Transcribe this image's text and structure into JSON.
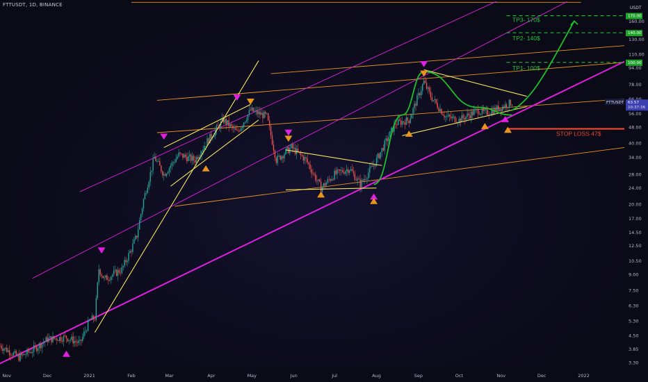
{
  "header": {
    "title": "FTTUSDT, 1D, BINANCE"
  },
  "price_axis": {
    "unit": "USDT",
    "ticks": [
      3.3,
      3.85,
      4.5,
      5.3,
      6.3,
      7.5,
      9.0,
      10.5,
      12.5,
      14.5,
      17.0,
      20.0,
      24.0,
      28.0,
      34.0,
      40.0,
      48.0,
      56.0,
      66.0,
      78.0,
      94.0,
      110.0,
      130.0,
      160.0,
      190.0
    ]
  },
  "time_axis": {
    "labels": [
      "Nov",
      "Dec",
      "2021",
      "Feb",
      "Mar",
      "Apr",
      "May",
      "Jun",
      "Jul",
      "Aug",
      "Sep",
      "Oct",
      "Nov",
      "Dec",
      "2022"
    ]
  },
  "price_tags": {
    "last": {
      "label": "FTTUSDT",
      "price": "63.57",
      "countdown": "10:37:36",
      "color": "#3b3fb0"
    },
    "tp3": {
      "price": "170.00",
      "color": "#1fa32b"
    },
    "tp2": {
      "price": "140.00",
      "color": "#1fa32b"
    },
    "tp1": {
      "price": "100.00",
      "color": "#1fa32b"
    }
  },
  "annotations": {
    "tp3": "TP3- 170$",
    "tp2": "TP2- 140$",
    "tp1": "TP1- 100$",
    "stop_loss": "STOP LOSS 47$"
  },
  "colors": {
    "up": "#26a69a",
    "down": "#ef5350",
    "magenta": "#e01fe0",
    "orange": "#e8951e",
    "yellow": "#f5e65b",
    "green": "#1fbf2c",
    "red": "#e8482f"
  },
  "chart_data": {
    "type": "candlestick",
    "symbol": "FTTUSDT",
    "interval": "1D",
    "exchange": "BINANCE",
    "scale": "log",
    "ylim": [
      3.1,
      200
    ],
    "xlim": [
      "2020-10-27",
      "2022-01-31"
    ],
    "close_path": [
      [
        "2020-10-27",
        4.0
      ],
      [
        "2020-11-10",
        3.5
      ],
      [
        "2020-11-20",
        3.8
      ],
      [
        "2020-12-01",
        4.3
      ],
      [
        "2020-12-15",
        4.4
      ],
      [
        "2020-12-25",
        4.1
      ],
      [
        "2021-01-01",
        5.3
      ],
      [
        "2021-01-05",
        5.5
      ],
      [
        "2021-01-08",
        9.6
      ],
      [
        "2021-01-12",
        8.5
      ],
      [
        "2021-01-25",
        9.5
      ],
      [
        "2021-02-01",
        12.0
      ],
      [
        "2021-02-05",
        14.0
      ],
      [
        "2021-02-10",
        21.0
      ],
      [
        "2021-02-18",
        34.0
      ],
      [
        "2021-02-25",
        28.0
      ],
      [
        "2021-03-08",
        35.0
      ],
      [
        "2021-03-20",
        33.0
      ],
      [
        "2021-03-28",
        40.0
      ],
      [
        "2021-04-10",
        52.0
      ],
      [
        "2021-04-20",
        45.0
      ],
      [
        "2021-04-30",
        58.0
      ],
      [
        "2021-05-12",
        54.0
      ],
      [
        "2021-05-19",
        33.0
      ],
      [
        "2021-05-30",
        38.0
      ],
      [
        "2021-06-10",
        33.0
      ],
      [
        "2021-06-21",
        24.0
      ],
      [
        "2021-07-01",
        28.0
      ],
      [
        "2021-07-12",
        30.0
      ],
      [
        "2021-07-20",
        25.0
      ],
      [
        "2021-07-31",
        32.0
      ],
      [
        "2021-08-15",
        50.0
      ],
      [
        "2021-08-25",
        52.0
      ],
      [
        "2021-09-05",
        80.0
      ],
      [
        "2021-09-10",
        68.0
      ],
      [
        "2021-09-21",
        54.0
      ],
      [
        "2021-10-01",
        52.0
      ],
      [
        "2021-10-15",
        58.0
      ],
      [
        "2021-10-20",
        56.0
      ],
      [
        "2021-11-01",
        60.0
      ],
      [
        "2021-11-09",
        63.57
      ]
    ],
    "targets": [
      {
        "name": "TP3",
        "price": 170
      },
      {
        "name": "TP2",
        "price": 140
      },
      {
        "name": "TP1",
        "price": 100
      }
    ],
    "stop_loss": 47,
    "current_price": 63.57,
    "projection": [
      [
        "2021-11-09",
        58
      ],
      [
        "2021-11-25",
        66
      ],
      [
        "2021-12-08",
        100
      ],
      [
        "2021-12-25",
        160
      ]
    ],
    "markers": {
      "magenta_down": [
        [
          "2021-01-10",
          11.8
        ],
        [
          "2021-02-25",
          43
        ],
        [
          "2021-04-20",
          67
        ],
        [
          "2021-05-28",
          45
        ],
        [
          "2021-09-05",
          98
        ]
      ],
      "magenta_up": [
        [
          "2020-12-15",
          3.65
        ],
        [
          "2021-07-30",
          21.8
        ],
        [
          "2021-11-04",
          52.5
        ]
      ],
      "orange_down": [
        [
          "2021-04-30",
          64
        ],
        [
          "2021-05-28",
          42
        ],
        [
          "2021-09-05",
          88
        ]
      ],
      "orange_up": [
        [
          "2021-03-28",
          30
        ],
        [
          "2021-06-21",
          22.3
        ],
        [
          "2021-07-30",
          20.7
        ],
        [
          "2021-08-25",
          44.5
        ],
        [
          "2021-10-20",
          48.5
        ],
        [
          "2021-11-06",
          46.5
        ]
      ]
    },
    "lines": {
      "magenta_main": [
        [
          "2020-10-20",
          3.1
        ],
        [
          "2022-01-31",
          101
        ]
      ],
      "magenta_channel": [
        [
          [
            "2020-11-20",
            8.6
          ],
          [
            "2021-12-20",
            200
          ]
        ],
        [
          [
            "2020-12-25",
            23
          ],
          [
            "2021-11-01",
            205
          ]
        ]
      ],
      "orange_channel": [
        [
          [
            "2021-03-05",
            19.5
          ],
          [
            "2022-01-31",
            38
          ]
        ],
        [
          [
            "2021-02-20",
            45
          ],
          [
            "2022-01-31",
            66
          ]
        ],
        [
          [
            "2021-02-20",
            65
          ],
          [
            "2022-01-31",
            100
          ]
        ],
        [
          [
            "2021-05-15",
            88
          ],
          [
            "2022-01-31",
            121
          ]
        ],
        [
          [
            "2021-02-01",
            198
          ],
          [
            "2021-12-30",
            198
          ]
        ]
      ],
      "yellow": [
        [
          [
            "2021-01-05",
            4.65
          ],
          [
            "2021-05-06",
            102
          ]
        ],
        [
          [
            "2021-02-25",
            38
          ],
          [
            "2021-04-30",
            62
          ]
        ],
        [
          [
            "2021-03-02",
            24.5
          ],
          [
            "2021-05-06",
            52
          ]
        ],
        [
          [
            "2021-05-26",
            37
          ],
          [
            "2021-08-05",
            31
          ]
        ],
        [
          [
            "2021-05-26",
            23.5
          ],
          [
            "2021-08-01",
            24
          ]
        ],
        [
          [
            "2021-09-05",
            92
          ],
          [
            "2021-11-20",
            68
          ]
        ],
        [
          [
            "2021-08-20",
            43.5
          ],
          [
            "2021-11-20",
            60.5
          ]
        ]
      ],
      "green_curve": [
        [
          "2021-07-30",
          25
        ],
        [
          "2021-08-20",
          55
        ],
        [
          "2021-09-05",
          90
        ],
        [
          "2021-10-15",
          60
        ],
        [
          "2021-11-09",
          55
        ]
      ]
    }
  }
}
